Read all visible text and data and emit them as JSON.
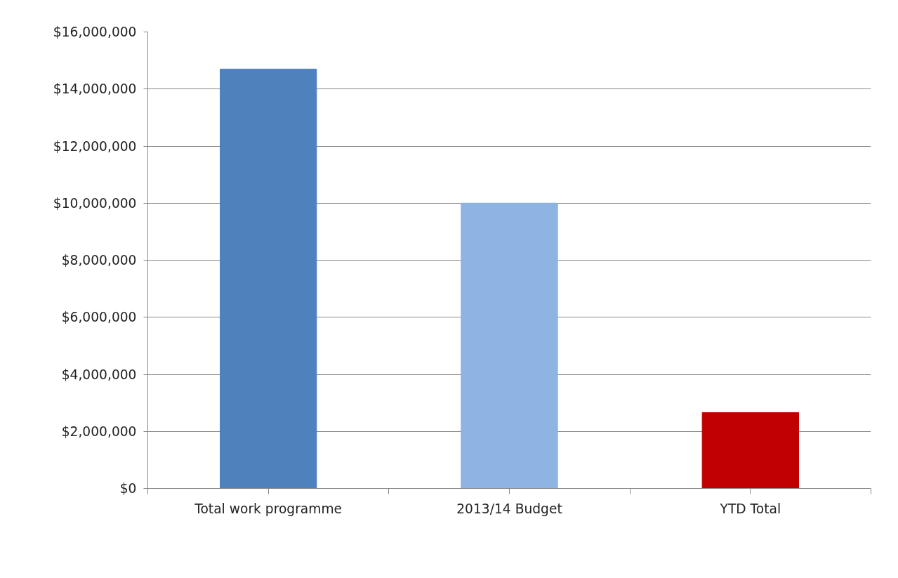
{
  "chart_data": {
    "type": "bar",
    "categories": [
      "Total work programme",
      "2013/14 Budget",
      "YTD Total"
    ],
    "values": [
      14700000,
      10000000,
      2660000
    ],
    "colors": [
      "#4f81bd",
      "#8eb4e3",
      "#c00000"
    ],
    "ylim": [
      0,
      16000000
    ],
    "yticks": [
      {
        "value": 0,
        "label": "$0"
      },
      {
        "value": 2000000,
        "label": "$2,000,000"
      },
      {
        "value": 4000000,
        "label": "$4,000,000"
      },
      {
        "value": 6000000,
        "label": "$6,000,000"
      },
      {
        "value": 8000000,
        "label": "$8,000,000"
      },
      {
        "value": 10000000,
        "label": "$10,000,000"
      },
      {
        "value": 12000000,
        "label": "$12,000,000"
      },
      {
        "value": 14000000,
        "label": "$14,000,000"
      },
      {
        "value": 16000000,
        "label": "$16,000,000"
      }
    ],
    "grid": "y"
  }
}
